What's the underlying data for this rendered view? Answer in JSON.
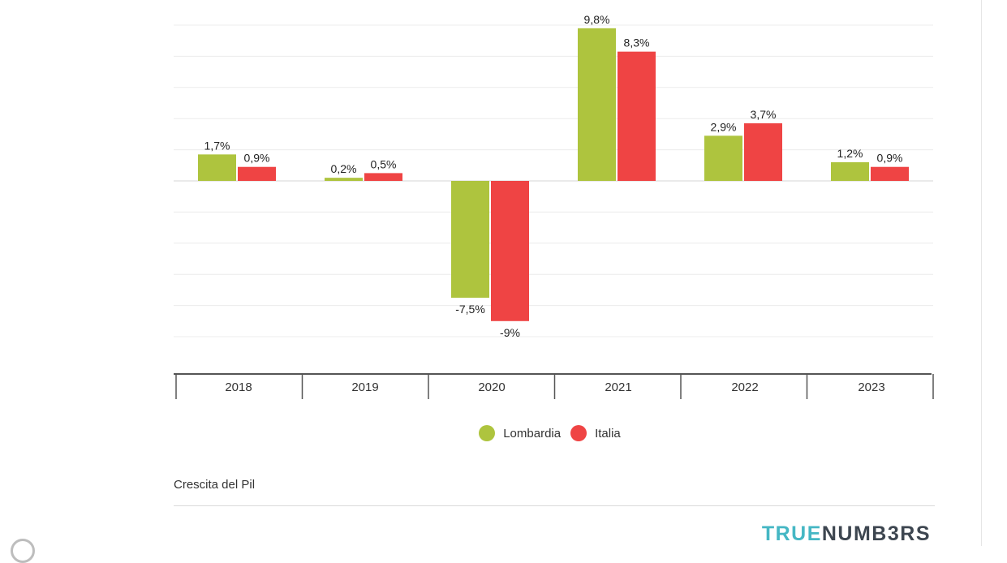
{
  "chart_data": {
    "type": "bar",
    "categories": [
      "2018",
      "2019",
      "2020",
      "2021",
      "2022",
      "2023"
    ],
    "series": [
      {
        "name": "Lombardia",
        "color": "#aec43e",
        "values": [
          1.7,
          0.2,
          -7.5,
          9.8,
          2.9,
          1.2
        ],
        "labels": [
          "1,7%",
          "0,2%",
          "-7,5%",
          "9,8%",
          "2,9%",
          "1,2%"
        ]
      },
      {
        "name": "Italia",
        "color": "#ef4444",
        "values": [
          0.9,
          0.5,
          -9,
          8.3,
          3.7,
          0.9
        ],
        "labels": [
          "0,9%",
          "0,5%",
          "-9%",
          "8,3%",
          "3,7%",
          "0,9%"
        ]
      }
    ],
    "ylim": [
      -12,
      10
    ],
    "grid": true,
    "legend_position": "bottom-center"
  },
  "caption": "Crescita del Pil",
  "brand": {
    "part1": "TRUE",
    "part2": "NUMB3RS"
  }
}
